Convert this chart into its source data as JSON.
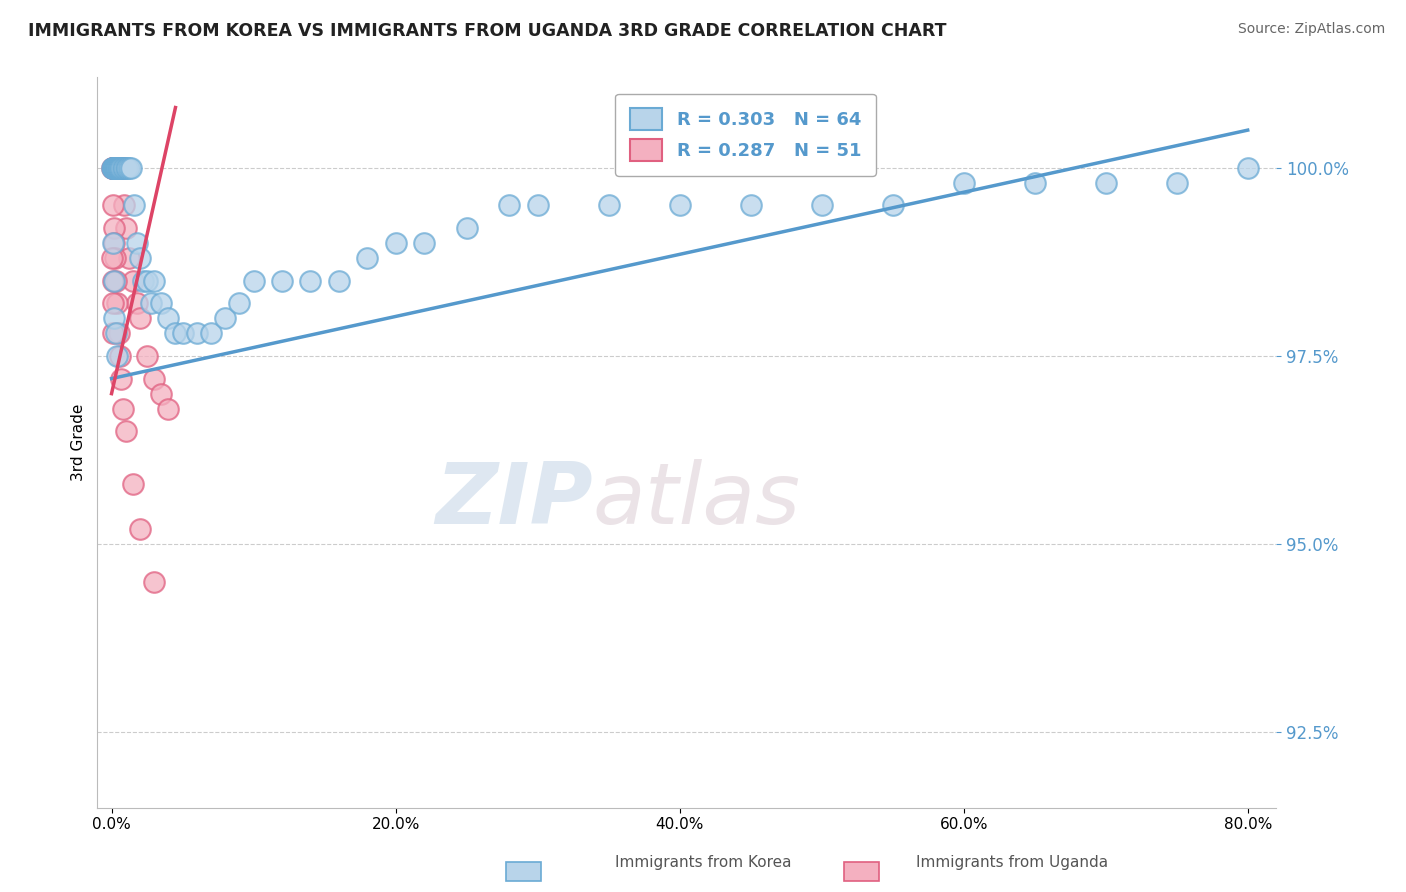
{
  "title": "IMMIGRANTS FROM KOREA VS IMMIGRANTS FROM UGANDA 3RD GRADE CORRELATION CHART",
  "source": "Source: ZipAtlas.com",
  "ylabel": "3rd Grade",
  "x_tick_labels": [
    "0.0%",
    "20.0%",
    "40.0%",
    "60.0%",
    "80.0%"
  ],
  "x_tick_values": [
    0.0,
    20.0,
    40.0,
    60.0,
    80.0
  ],
  "y_tick_labels": [
    "92.5%",
    "95.0%",
    "97.5%",
    "100.0%"
  ],
  "y_tick_values": [
    92.5,
    95.0,
    97.5,
    100.0
  ],
  "xlim": [
    -1.0,
    82.0
  ],
  "ylim": [
    91.5,
    101.2
  ],
  "legend_korea": "R = 0.303   N = 64",
  "legend_uganda": "R = 0.287   N = 51",
  "korea_color": "#b8d4ea",
  "uganda_color": "#f4b0c0",
  "korea_edge_color": "#6aaad4",
  "uganda_edge_color": "#e06080",
  "korea_line_color": "#5599cc",
  "uganda_line_color": "#dd4466",
  "watermark_zip": "ZIP",
  "watermark_atlas": "atlas",
  "legend_korea_text": "R = 0.303   N = 64",
  "legend_uganda_text": "R = 0.287   N = 51",
  "korea_scatter_x": [
    0.05,
    0.08,
    0.1,
    0.12,
    0.15,
    0.18,
    0.2,
    0.22,
    0.25,
    0.28,
    0.3,
    0.35,
    0.4,
    0.45,
    0.5,
    0.55,
    0.6,
    0.7,
    0.8,
    0.9,
    1.0,
    1.1,
    1.2,
    1.4,
    1.6,
    1.8,
    2.0,
    2.2,
    2.5,
    2.8,
    3.0,
    3.5,
    4.0,
    4.5,
    5.0,
    6.0,
    7.0,
    8.0,
    9.0,
    10.0,
    12.0,
    14.0,
    16.0,
    18.0,
    20.0,
    22.0,
    25.0,
    28.0,
    30.0,
    35.0,
    40.0,
    45.0,
    50.0,
    55.0,
    60.0,
    65.0,
    70.0,
    75.0,
    80.0,
    0.1,
    0.15,
    0.2,
    0.3,
    0.4
  ],
  "korea_scatter_y": [
    100.0,
    100.0,
    100.0,
    100.0,
    100.0,
    100.0,
    100.0,
    100.0,
    100.0,
    100.0,
    100.0,
    100.0,
    100.0,
    100.0,
    100.0,
    100.0,
    100.0,
    100.0,
    100.0,
    100.0,
    100.0,
    100.0,
    100.0,
    100.0,
    99.5,
    99.0,
    98.8,
    98.5,
    98.5,
    98.2,
    98.5,
    98.2,
    98.0,
    97.8,
    97.8,
    97.8,
    97.8,
    98.0,
    98.2,
    98.5,
    98.5,
    98.5,
    98.5,
    98.8,
    99.0,
    99.0,
    99.2,
    99.5,
    99.5,
    99.5,
    99.5,
    99.5,
    99.5,
    99.5,
    99.8,
    99.8,
    99.8,
    99.8,
    100.0,
    99.0,
    98.5,
    98.0,
    97.8,
    97.5
  ],
  "uganda_scatter_x": [
    0.05,
    0.08,
    0.1,
    0.12,
    0.15,
    0.18,
    0.2,
    0.22,
    0.25,
    0.28,
    0.3,
    0.32,
    0.35,
    0.38,
    0.4,
    0.42,
    0.45,
    0.5,
    0.55,
    0.6,
    0.65,
    0.7,
    0.8,
    0.9,
    1.0,
    1.2,
    1.5,
    1.8,
    2.0,
    2.5,
    3.0,
    3.5,
    4.0,
    0.1,
    0.15,
    0.2,
    0.25,
    0.3,
    0.4,
    0.5,
    0.6,
    0.7,
    0.8,
    1.0,
    1.5,
    2.0,
    3.0,
    0.05,
    0.08,
    0.1,
    0.12
  ],
  "uganda_scatter_y": [
    100.0,
    100.0,
    100.0,
    100.0,
    100.0,
    100.0,
    100.0,
    100.0,
    100.0,
    100.0,
    100.0,
    100.0,
    100.0,
    100.0,
    100.0,
    100.0,
    100.0,
    100.0,
    100.0,
    100.0,
    100.0,
    100.0,
    100.0,
    99.5,
    99.2,
    98.8,
    98.5,
    98.2,
    98.0,
    97.5,
    97.2,
    97.0,
    96.8,
    99.5,
    99.2,
    99.0,
    98.8,
    98.5,
    98.2,
    97.8,
    97.5,
    97.2,
    96.8,
    96.5,
    95.8,
    95.2,
    94.5,
    98.8,
    98.5,
    98.2,
    97.8
  ],
  "korea_line_x": [
    0.0,
    80.0
  ],
  "korea_line_y": [
    97.2,
    100.5
  ],
  "uganda_line_x": [
    0.0,
    4.5
  ],
  "uganda_line_y": [
    97.0,
    100.8
  ],
  "bottom_label_korea": "Immigrants from Korea",
  "bottom_label_uganda": "Immigrants from Uganda"
}
